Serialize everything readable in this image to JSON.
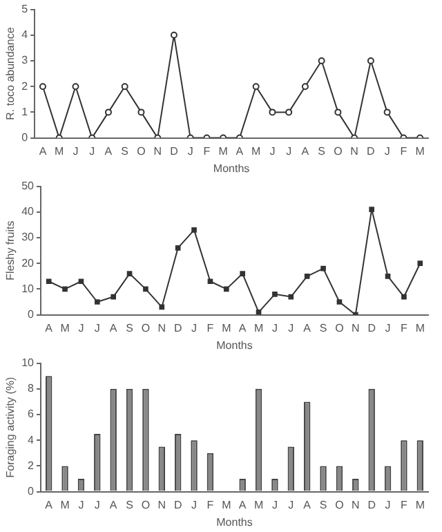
{
  "chart_data": [
    {
      "type": "line",
      "xlabel": "Months",
      "ylabel": "R. toco abundance",
      "categories": [
        "A",
        "M",
        "J",
        "J",
        "A",
        "S",
        "O",
        "N",
        "D",
        "J",
        "F",
        "M",
        "A",
        "M",
        "J",
        "J",
        "A",
        "S",
        "O",
        "N",
        "D",
        "J",
        "F",
        "M"
      ],
      "series": [
        {
          "color": "#333333",
          "values": [
            2,
            0,
            2,
            0,
            1,
            2,
            1,
            0,
            4,
            0,
            0,
            0,
            0,
            2,
            1,
            1,
            2,
            3,
            1,
            0,
            3,
            1,
            0,
            0
          ]
        }
      ],
      "ylim": [
        0,
        5
      ],
      "yticks": [
        0,
        1,
        2,
        3,
        4,
        5
      ],
      "grid": false,
      "legend": false,
      "marker": "circle",
      "line_style": "solid"
    },
    {
      "type": "line",
      "xlabel": "Months",
      "ylabel": "Fleshy fruits",
      "categories": [
        "A",
        "M",
        "J",
        "J",
        "A",
        "S",
        "O",
        "N",
        "D",
        "J",
        "F",
        "M",
        "A",
        "M",
        "J",
        "J",
        "A",
        "S",
        "O",
        "N",
        "D",
        "J",
        "F",
        "M"
      ],
      "series": [
        {
          "color": "#333333",
          "values": [
            13,
            10,
            13,
            5,
            7,
            16,
            10,
            3,
            26,
            33,
            13,
            10,
            16,
            1,
            8,
            7,
            15,
            18,
            5,
            0,
            41,
            15,
            7,
            20
          ]
        }
      ],
      "ylim": [
        0,
        50
      ],
      "yticks": [
        0,
        10,
        20,
        30,
        40,
        50
      ],
      "grid": false,
      "legend": false,
      "marker": "square",
      "line_style": "solid"
    },
    {
      "type": "bar",
      "xlabel": "Months",
      "ylabel": "Foraging activity (%)",
      "categories": [
        "A",
        "M",
        "J",
        "J",
        "A",
        "S",
        "O",
        "N",
        "D",
        "J",
        "F",
        "M",
        "A",
        "M",
        "J",
        "J",
        "A",
        "S",
        "O",
        "N",
        "D",
        "J",
        "F",
        "M"
      ],
      "series": [
        {
          "color": "#888888",
          "values": [
            9,
            2,
            1,
            4.5,
            8,
            8,
            8,
            3.5,
            4.5,
            4,
            3,
            0,
            1,
            8,
            1,
            3.5,
            7,
            2,
            2,
            1,
            8,
            2,
            4,
            4
          ]
        }
      ],
      "ylim": [
        0,
        10
      ],
      "yticks": [
        0,
        2,
        4,
        6,
        8,
        10
      ],
      "grid": false,
      "legend": false
    }
  ]
}
